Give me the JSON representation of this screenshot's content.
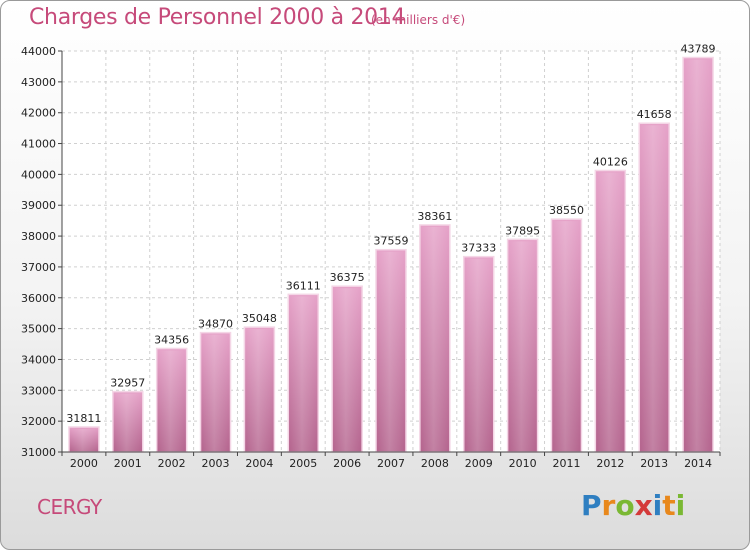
{
  "header": {
    "title": "Charges de Personnel 2000 à 2014",
    "subtitle": "(en milliers d'€)"
  },
  "footer": {
    "city": "CERGY",
    "logo": {
      "text": "Proxiti",
      "letter_colors": [
        "#2f7fc1",
        "#e8881c",
        "#7ab833",
        "#d43a3a",
        "#2f7fc1",
        "#e8881c",
        "#7ab833"
      ]
    }
  },
  "colors": {
    "bar_top": "#e6a3c9",
    "bar_bottom": "#b5668f",
    "grid": "#d0d0d0",
    "title": "#c64a7a"
  },
  "chart_data": {
    "type": "bar",
    "title": "Charges de Personnel 2000 à 2014",
    "subtitle": "(en milliers d'€)",
    "categories": [
      "2000",
      "2001",
      "2002",
      "2003",
      "2004",
      "2005",
      "2006",
      "2007",
      "2008",
      "2009",
      "2010",
      "2011",
      "2012",
      "2013",
      "2014"
    ],
    "values": [
      31811,
      32957,
      34356,
      34870,
      35048,
      36111,
      36375,
      37559,
      38361,
      37333,
      37895,
      38550,
      40126,
      41658,
      43789
    ],
    "ylim": [
      31000,
      44000
    ],
    "yticks": [
      31000,
      32000,
      33000,
      34000,
      35000,
      36000,
      37000,
      38000,
      39000,
      40000,
      41000,
      42000,
      43000,
      44000
    ],
    "grid": true,
    "data_labels": true
  }
}
